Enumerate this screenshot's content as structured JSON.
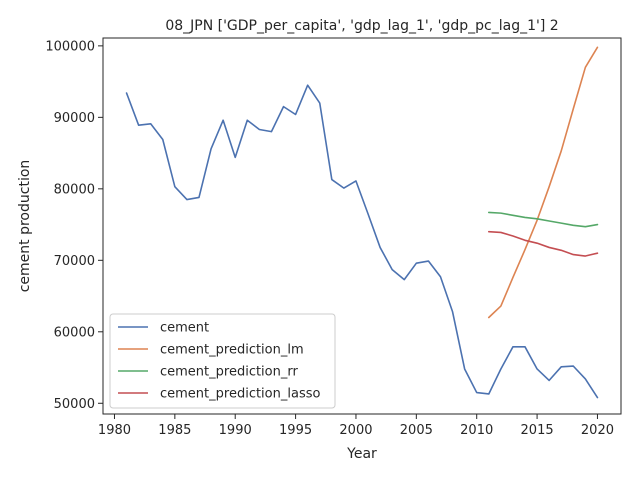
{
  "chart_data": {
    "type": "line",
    "title": "08_JPN ['GDP_per_capita', 'gdp_lag_1', 'gdp_pc_lag_1'] 2",
    "xlabel": "Year",
    "ylabel": "cement production",
    "xlim": [
      1979.05,
      2021.95
    ],
    "ylim": [
      48500,
      101100
    ],
    "xticks": [
      1980,
      1985,
      1990,
      1995,
      2000,
      2005,
      2010,
      2015,
      2020
    ],
    "yticks": [
      50000,
      60000,
      70000,
      80000,
      90000,
      100000
    ],
    "grid": false,
    "legend_position": "lower-left",
    "series": [
      {
        "name": "cement",
        "color": "#4c72b0",
        "x": [
          1981,
          1982,
          1983,
          1984,
          1985,
          1986,
          1987,
          1988,
          1989,
          1990,
          1991,
          1992,
          1993,
          1994,
          1995,
          1996,
          1997,
          1998,
          1999,
          2000,
          2001,
          2002,
          2003,
          2004,
          2005,
          2006,
          2007,
          2008,
          2009,
          2010,
          2011,
          2012,
          2013,
          2014,
          2015,
          2016,
          2017,
          2018,
          2019,
          2020
        ],
        "y": [
          93400,
          88900,
          89100,
          86900,
          80300,
          78500,
          78800,
          85600,
          89600,
          84400,
          89600,
          88300,
          88000,
          91500,
          90400,
          94500,
          92000,
          81300,
          80100,
          81100,
          76500,
          71800,
          68700,
          67300,
          69600,
          69900,
          67700,
          62800,
          54800,
          51500,
          51300,
          54800,
          57900,
          57900,
          54800,
          53200,
          55100,
          55200,
          53400,
          50800
        ]
      },
      {
        "name": "cement_prediction_lm",
        "color": "#dd8452",
        "x": [
          2011,
          2012,
          2013,
          2014,
          2015,
          2016,
          2017,
          2018,
          2019,
          2020
        ],
        "y": [
          62000,
          63600,
          67600,
          71500,
          75600,
          80300,
          85300,
          91200,
          97000,
          99800
        ]
      },
      {
        "name": "cement_prediction_rr",
        "color": "#55a868",
        "x": [
          2011,
          2012,
          2013,
          2014,
          2015,
          2016,
          2017,
          2018,
          2019,
          2020
        ],
        "y": [
          76700,
          76600,
          76300,
          76000,
          75800,
          75500,
          75200,
          74900,
          74700,
          75000
        ]
      },
      {
        "name": "cement_prediction_lasso",
        "color": "#c44e52",
        "x": [
          2011,
          2012,
          2013,
          2014,
          2015,
          2016,
          2017,
          2018,
          2019,
          2020
        ],
        "y": [
          74000,
          73900,
          73400,
          72800,
          72400,
          71800,
          71400,
          70800,
          70600,
          71000
        ]
      }
    ]
  }
}
